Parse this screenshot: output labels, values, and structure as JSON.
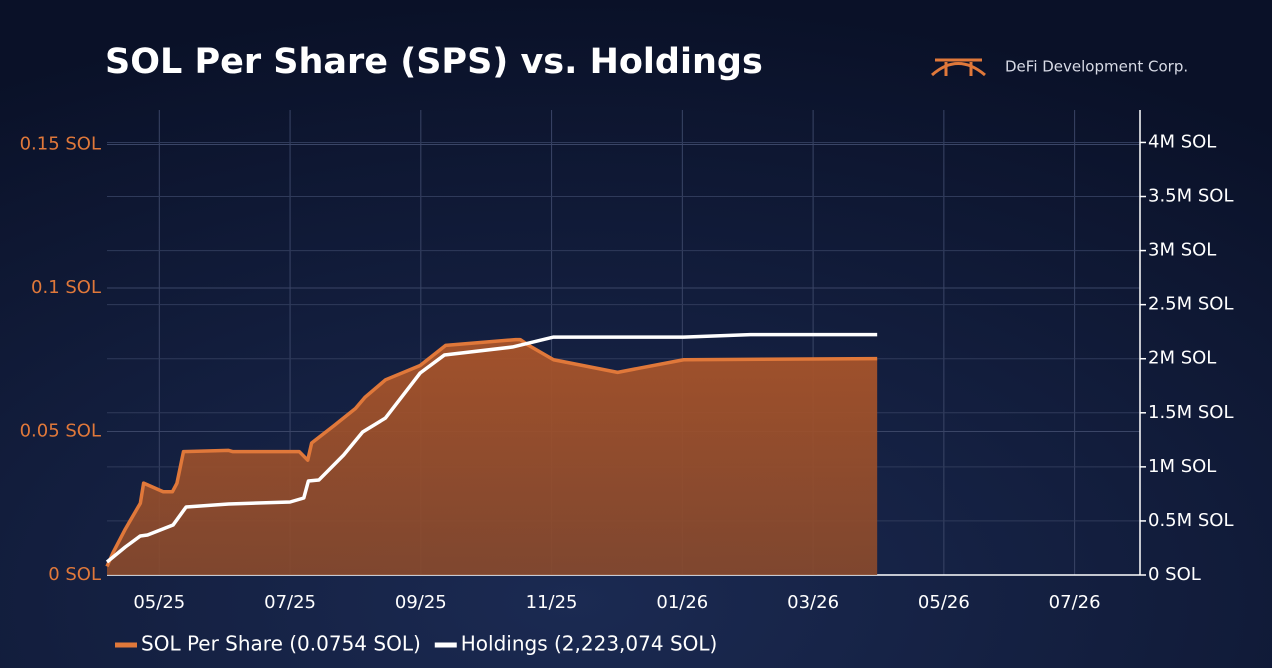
{
  "chart_data": {
    "type": "line",
    "title": "SOL Per Share (SPS) vs. Holdings",
    "brand": "DeFi Development Corp.",
    "xlim": [
      4.2,
      20.0
    ],
    "xticks": [
      {
        "value": 5,
        "label": "05/25"
      },
      {
        "value": 7,
        "label": "07/25"
      },
      {
        "value": 9,
        "label": "09/25"
      },
      {
        "value": 11,
        "label": "11/25"
      },
      {
        "value": 13,
        "label": "01/26"
      },
      {
        "value": 15,
        "label": "03/26"
      },
      {
        "value": 17,
        "label": "05/26"
      },
      {
        "value": 19,
        "label": "07/26"
      }
    ],
    "ylim": [
      0,
      0.162
    ],
    "yticks": [
      {
        "value": 0,
        "label": "0 SOL"
      },
      {
        "value": 0.05,
        "label": "0.05 SOL"
      },
      {
        "value": 0.1,
        "label": "0.1 SOL"
      },
      {
        "value": 0.15,
        "label": "0.15 SOL"
      }
    ],
    "y2lim": [
      0,
      4300000
    ],
    "y2ticks": [
      {
        "value": 0,
        "label": "0 SOL"
      },
      {
        "value": 500000,
        "label": "0.5M SOL"
      },
      {
        "value": 1000000,
        "label": "1M SOL"
      },
      {
        "value": 1500000,
        "label": "1.5M SOL"
      },
      {
        "value": 2000000,
        "label": "2M SOL"
      },
      {
        "value": 2500000,
        "label": "2.5M SOL"
      },
      {
        "value": 3000000,
        "label": "3M SOL"
      },
      {
        "value": 3500000,
        "label": "3.5M SOL"
      },
      {
        "value": 4000000,
        "label": "4M SOL"
      }
    ],
    "grid": true,
    "series": [
      {
        "name": "SOL Per Share (0.0754 SOL)",
        "color": "#e0783a",
        "area": true,
        "axis": "y",
        "x": [
          4.2,
          4.29,
          4.48,
          4.71,
          4.76,
          5.06,
          5.2,
          5.27,
          5.37,
          6.06,
          6.12,
          7.14,
          7.27,
          7.33,
          7.67,
          8.0,
          8.15,
          8.46,
          8.99,
          9.38,
          10.45,
          10.52,
          10.65,
          11.03,
          12.01,
          13.02,
          15.98
        ],
        "values": [
          0.003,
          0.0077,
          0.016,
          0.025,
          0.032,
          0.029,
          0.029,
          0.032,
          0.043,
          0.0434,
          0.043,
          0.043,
          0.04,
          0.046,
          0.052,
          0.058,
          0.062,
          0.068,
          0.073,
          0.08,
          0.082,
          0.082,
          0.08,
          0.075,
          0.0706,
          0.075,
          0.0754
        ]
      },
      {
        "name": "Holdings (2,223,074 SOL)",
        "color": "#ffffff",
        "area": false,
        "axis": "y2",
        "x": [
          4.2,
          4.48,
          4.71,
          4.82,
          5.21,
          5.41,
          6.06,
          7.0,
          7.21,
          7.28,
          7.44,
          7.82,
          8.11,
          8.46,
          8.99,
          9.36,
          10.4,
          11.03,
          13.02,
          14.04,
          15.98
        ],
        "values": [
          120000,
          259000,
          361000,
          370000,
          462000,
          629000,
          657000,
          675000,
          712000,
          869000,
          878000,
          1110000,
          1322000,
          1452000,
          1868000,
          2034000,
          2108000,
          2200000,
          2200000,
          2223074,
          2223074
        ]
      }
    ]
  }
}
